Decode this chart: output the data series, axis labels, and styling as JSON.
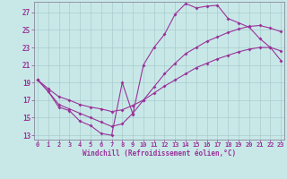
{
  "xlabel": "Windchill (Refroidissement éolien,°C)",
  "bg_color": "#c8e8e8",
  "line_color": "#993399",
  "grid_color": "#aacccc",
  "spine_color": "#888899",
  "xlim_min": -0.3,
  "xlim_max": 23.3,
  "ylim_min": 12.5,
  "ylim_max": 28.2,
  "xticks": [
    0,
    1,
    2,
    3,
    4,
    5,
    6,
    7,
    8,
    9,
    10,
    11,
    12,
    13,
    14,
    15,
    16,
    17,
    18,
    19,
    20,
    21,
    22,
    23
  ],
  "yticks": [
    13,
    15,
    17,
    19,
    21,
    23,
    25,
    27
  ],
  "curve1_x": [
    0,
    1,
    2,
    3,
    4,
    5,
    6,
    7,
    8,
    9,
    10,
    11,
    12,
    13,
    14,
    15,
    16,
    17,
    18,
    19,
    20,
    21,
    22,
    23
  ],
  "curve1_y": [
    19.3,
    18.0,
    16.2,
    15.8,
    14.6,
    14.1,
    13.2,
    13.0,
    19.0,
    15.4,
    21.0,
    23.0,
    24.5,
    26.8,
    28.0,
    27.5,
    27.7,
    27.8,
    26.3,
    25.8,
    25.3,
    24.0,
    23.0,
    21.5
  ],
  "curve2_x": [
    0,
    1,
    2,
    3,
    4,
    5,
    6,
    7,
    8,
    9,
    10,
    11,
    12,
    13,
    14,
    15,
    16,
    17,
    18,
    19,
    20,
    21,
    22,
    23
  ],
  "curve2_y": [
    19.3,
    18.0,
    16.5,
    16.0,
    15.5,
    15.0,
    14.5,
    14.0,
    14.3,
    15.5,
    17.0,
    18.5,
    20.0,
    21.2,
    22.3,
    23.0,
    23.7,
    24.2,
    24.7,
    25.1,
    25.4,
    25.5,
    25.2,
    24.8
  ],
  "curve3_x": [
    0,
    1,
    2,
    3,
    4,
    5,
    6,
    7,
    8,
    9,
    10,
    11,
    12,
    13,
    14,
    15,
    16,
    17,
    18,
    19,
    20,
    21,
    22,
    23
  ],
  "curve3_y": [
    19.3,
    18.3,
    17.4,
    17.0,
    16.5,
    16.2,
    16.0,
    15.7,
    15.9,
    16.4,
    17.0,
    17.8,
    18.6,
    19.3,
    20.0,
    20.7,
    21.2,
    21.7,
    22.1,
    22.5,
    22.8,
    23.0,
    23.0,
    22.6
  ],
  "tick_fontsize": 5.5,
  "xlabel_fontsize": 5.5,
  "marker_size": 2.0,
  "line_width": 0.8
}
